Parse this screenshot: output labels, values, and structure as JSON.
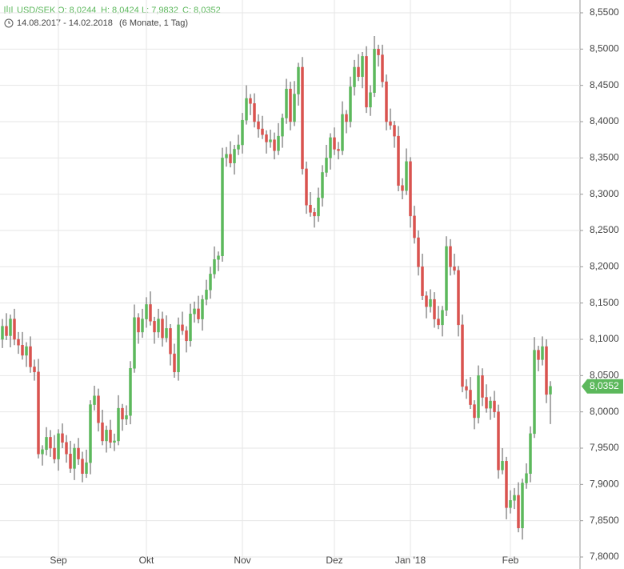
{
  "chart_data": {
    "type": "candlestick",
    "header": {
      "symbol": "USD/SEK",
      "open": "O: 8,0244",
      "high": "H: 8,0424",
      "low": "L: 7,9832",
      "close": "C: 8,0352"
    },
    "date_range": "14.08.2017 - 14.02.2018",
    "period": "(6 Monate, 1 Tag)",
    "last_label": "8,0352",
    "up_color": "#5cb85c",
    "down_color": "#d9534f",
    "grid": true,
    "ylim": [
      7.8,
      8.55
    ],
    "yticks": [
      {
        "value": 7.8,
        "label": "7,8000"
      },
      {
        "value": 7.85,
        "label": "7,8500"
      },
      {
        "value": 7.9,
        "label": "7,9000"
      },
      {
        "value": 7.95,
        "label": "7,9500"
      },
      {
        "value": 8.0,
        "label": "8,0000"
      },
      {
        "value": 8.05,
        "label": "8,0500"
      },
      {
        "value": 8.1,
        "label": "8,1000"
      },
      {
        "value": 8.15,
        "label": "8,1500"
      },
      {
        "value": 8.2,
        "label": "8,2000"
      },
      {
        "value": 8.25,
        "label": "8,2500"
      },
      {
        "value": 8.3,
        "label": "8,3000"
      },
      {
        "value": 8.35,
        "label": "8,3500"
      },
      {
        "value": 8.4,
        "label": "8,4000"
      },
      {
        "value": 8.45,
        "label": "8,4500"
      },
      {
        "value": 8.5,
        "label": "8,5000"
      },
      {
        "value": 8.55,
        "label": "8,5500"
      }
    ],
    "categories": [
      null,
      null,
      null,
      null,
      null,
      null,
      null,
      null,
      null,
      null,
      null,
      null,
      null,
      null,
      "Sep",
      null,
      null,
      null,
      null,
      null,
      null,
      null,
      null,
      null,
      null,
      null,
      null,
      null,
      null,
      null,
      null,
      null,
      null,
      null,
      null,
      null,
      "Okt",
      null,
      null,
      null,
      null,
      null,
      null,
      null,
      null,
      null,
      null,
      null,
      null,
      null,
      null,
      null,
      null,
      null,
      null,
      null,
      null,
      null,
      null,
      null,
      "Nov",
      null,
      null,
      null,
      null,
      null,
      null,
      null,
      null,
      null,
      null,
      null,
      null,
      null,
      null,
      null,
      null,
      null,
      null,
      null,
      null,
      null,
      null,
      "Dez",
      null,
      null,
      null,
      null,
      null,
      null,
      null,
      null,
      null,
      null,
      null,
      null,
      null,
      null,
      null,
      null,
      null,
      null,
      "Jan '18",
      null,
      null,
      null,
      null,
      null,
      null,
      null,
      null,
      null,
      null,
      null,
      null,
      null,
      null,
      null,
      null,
      null,
      null,
      null,
      null,
      null,
      null,
      null,
      null,
      "Feb",
      null,
      null,
      null,
      null,
      null,
      null,
      null,
      null,
      null,
      null
    ],
    "open": [
      8.1,
      8.118,
      8.105,
      8.128,
      8.1,
      8.092,
      8.078,
      8.09,
      8.062,
      8.055,
      7.942,
      7.948,
      7.965,
      7.95,
      7.935,
      7.97,
      7.958,
      7.942,
      7.922,
      7.95,
      7.935,
      7.915,
      7.93,
      8.01,
      8.022,
      7.985,
      7.96,
      7.975,
      7.958,
      7.96,
      8.005,
      7.99,
      7.995,
      8.06,
      8.13,
      8.11,
      8.128,
      8.148,
      8.125,
      8.11,
      8.128,
      8.102,
      8.115,
      8.08,
      8.055,
      8.12,
      8.112,
      8.098,
      8.135,
      8.142,
      8.128,
      8.155,
      8.168,
      8.19,
      8.21,
      8.215,
      8.35,
      8.355,
      8.343,
      8.362,
      8.368,
      8.402,
      8.432,
      8.425,
      8.4,
      8.39,
      8.382,
      8.372,
      8.375,
      8.36,
      8.38,
      8.405,
      8.445,
      8.4,
      8.438,
      8.475,
      8.335,
      8.285,
      8.275,
      8.27,
      8.295,
      8.33,
      8.35,
      8.378,
      8.362,
      8.36,
      8.41,
      8.4,
      8.448,
      8.475,
      8.462,
      8.49,
      8.42,
      8.44,
      8.5,
      8.492,
      8.455,
      8.4,
      8.395,
      8.38,
      8.312,
      8.305,
      8.345,
      8.27,
      8.24,
      8.2,
      8.16,
      8.145,
      8.155,
      8.128,
      8.12,
      8.14,
      8.228,
      8.2,
      8.195,
      8.12,
      8.035,
      8.03,
      8.01,
      7.992,
      8.05,
      8.02,
      8.005,
      8.015,
      8.0,
      7.92,
      7.932,
      7.868,
      7.878,
      7.885,
      7.84,
      7.902,
      7.915,
      7.97,
      8.085,
      8.072,
      8.09,
      8.0244
    ],
    "high": [
      8.128,
      8.136,
      8.134,
      8.142,
      8.11,
      8.11,
      8.096,
      8.104,
      8.072,
      8.073,
      7.954,
      7.979,
      7.975,
      7.968,
      7.976,
      7.984,
      7.968,
      7.96,
      7.956,
      7.964,
      7.945,
      7.948,
      8.016,
      8.036,
      8.032,
      8.003,
      7.981,
      7.989,
      7.97,
      8.023,
      8.011,
      8.009,
      8.07,
      8.148,
      8.136,
      8.142,
      8.158,
      8.166,
      8.131,
      8.142,
      8.138,
      8.133,
      8.121,
      8.094,
      8.13,
      8.138,
      8.118,
      8.149,
      8.152,
      8.16,
      8.161,
      8.182,
      8.2,
      8.228,
      8.221,
      8.364,
      8.365,
      8.373,
      8.368,
      8.382,
      8.412,
      8.45,
      8.438,
      8.439,
      8.41,
      8.408,
      8.388,
      8.389,
      8.385,
      8.398,
      8.411,
      8.459,
      8.455,
      8.456,
      8.481,
      8.489,
      8.345,
      8.303,
      8.281,
      8.309,
      8.34,
      8.368,
      8.384,
      8.392,
      8.372,
      8.428,
      8.416,
      8.462,
      8.485,
      8.493,
      8.496,
      8.504,
      8.45,
      8.518,
      8.506,
      8.506,
      8.465,
      8.418,
      8.401,
      8.394,
      8.322,
      8.363,
      8.351,
      8.284,
      8.25,
      8.218,
      8.166,
      8.169,
      8.165,
      8.146,
      8.146,
      8.242,
      8.238,
      8.218,
      8.201,
      8.134,
      8.045,
      8.048,
      8.016,
      8.064,
      8.06,
      8.038,
      8.021,
      8.029,
      8.01,
      7.95,
      7.938,
      7.892,
      7.895,
      7.903,
      7.908,
      7.929,
      7.98,
      8.103,
      8.091,
      8.104,
      8.1,
      8.0424
    ],
    "low": [
      8.088,
      8.099,
      8.089,
      8.092,
      8.08,
      8.072,
      8.062,
      8.054,
      8.043,
      7.936,
      7.926,
      7.94,
      7.938,
      7.929,
      7.919,
      7.95,
      7.93,
      7.916,
      7.906,
      7.927,
      7.903,
      7.909,
      7.914,
      8.002,
      7.973,
      7.954,
      7.944,
      7.95,
      7.946,
      7.954,
      7.974,
      7.982,
      7.983,
      8.054,
      8.094,
      8.102,
      8.116,
      8.119,
      8.094,
      8.102,
      8.09,
      8.096,
      8.064,
      8.047,
      8.043,
      8.106,
      8.082,
      8.09,
      8.123,
      8.122,
      8.112,
      8.147,
      8.156,
      8.184,
      8.194,
      8.207,
      8.338,
      8.337,
      8.327,
      8.354,
      8.356,
      8.396,
      8.409,
      8.392,
      8.378,
      8.376,
      8.356,
      8.364,
      8.348,
      8.354,
      8.364,
      8.397,
      8.388,
      8.394,
      8.422,
      8.327,
      8.273,
      8.269,
      8.254,
      8.262,
      8.283,
      8.324,
      8.334,
      8.354,
      8.348,
      8.354,
      8.384,
      8.392,
      8.436,
      8.456,
      8.446,
      8.412,
      8.408,
      8.434,
      8.476,
      8.447,
      8.388,
      8.389,
      8.364,
      8.304,
      8.293,
      8.299,
      8.254,
      8.232,
      8.188,
      8.154,
      8.129,
      8.137,
      8.116,
      8.114,
      8.104,
      8.132,
      8.188,
      8.189,
      8.104,
      8.027,
      8.018,
      8.004,
      7.976,
      7.984,
      8.008,
      7.999,
      7.989,
      7.992,
      7.908,
      7.914,
      7.852,
      7.86,
      7.866,
      7.834,
      7.824,
      7.894,
      7.903,
      7.964,
      8.056,
      8.064,
      8.012,
      7.9832
    ],
    "close": [
      8.118,
      8.105,
      8.128,
      8.1,
      8.092,
      8.078,
      8.09,
      8.062,
      8.055,
      7.942,
      7.948,
      7.965,
      7.95,
      7.935,
      7.97,
      7.958,
      7.942,
      7.922,
      7.95,
      7.935,
      7.915,
      7.93,
      8.01,
      8.022,
      7.985,
      7.96,
      7.975,
      7.958,
      7.96,
      8.005,
      7.99,
      7.995,
      8.06,
      8.13,
      8.11,
      8.128,
      8.148,
      8.125,
      8.11,
      8.128,
      8.102,
      8.115,
      8.08,
      8.055,
      8.12,
      8.112,
      8.098,
      8.135,
      8.142,
      8.128,
      8.155,
      8.168,
      8.19,
      8.21,
      8.215,
      8.35,
      8.355,
      8.343,
      8.362,
      8.368,
      8.402,
      8.432,
      8.425,
      8.4,
      8.39,
      8.382,
      8.372,
      8.375,
      8.36,
      8.38,
      8.405,
      8.445,
      8.4,
      8.438,
      8.475,
      8.335,
      8.285,
      8.275,
      8.27,
      8.295,
      8.33,
      8.35,
      8.378,
      8.362,
      8.36,
      8.41,
      8.4,
      8.448,
      8.475,
      8.462,
      8.49,
      8.42,
      8.44,
      8.5,
      8.492,
      8.455,
      8.4,
      8.395,
      8.38,
      8.312,
      8.305,
      8.345,
      8.27,
      8.24,
      8.2,
      8.16,
      8.145,
      8.155,
      8.128,
      8.12,
      8.14,
      8.228,
      8.2,
      8.195,
      8.12,
      8.035,
      8.03,
      8.01,
      7.992,
      8.05,
      8.02,
      8.005,
      8.015,
      8.0,
      7.92,
      7.932,
      7.868,
      7.878,
      7.885,
      7.84,
      7.902,
      7.915,
      7.97,
      8.085,
      8.072,
      8.09,
      8.024,
      8.0352
    ]
  }
}
